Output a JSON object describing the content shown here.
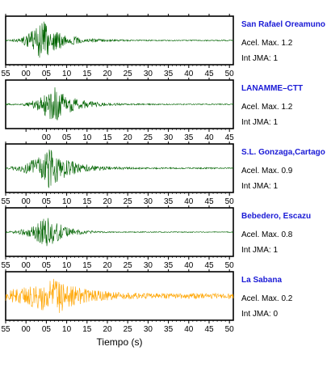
{
  "chart_data": {
    "type": "line",
    "xlabel": "Tiempo (s)",
    "x_tick_labels": [
      "55",
      "00",
      "05",
      "10",
      "15",
      "20",
      "25",
      "30",
      "35",
      "40",
      "45",
      "50",
      "55"
    ],
    "panels": [
      {
        "station": "San Rafael Oreamuno",
        "acel": "Acel. Max. 1.2",
        "jma": "Int JMA: 1",
        "color": "#006400",
        "tick_offset_s": 0,
        "tick_labels_visible": [
          0,
          11
        ],
        "signal": {
          "onset_s": 1.5,
          "peak_s": 9.0,
          "peak_amp": 0.95,
          "background": 0.06,
          "decay": 4.5
        }
      },
      {
        "station": "LANAMME–CTT",
        "acel": "Acel. Max. 1.2",
        "jma": "Int JMA: 1",
        "color": "#006400",
        "tick_offset_s": 5,
        "tick_labels_visible": [
          1,
          12
        ],
        "signal": {
          "onset_s": 4.0,
          "peak_s": 11.5,
          "peak_amp": 0.95,
          "background": 0.06,
          "decay": 4.5
        }
      },
      {
        "station": "S.L. Gonzaga,Cartago",
        "acel": "Acel. Max. 0.9",
        "jma": "Int JMA: 1",
        "color": "#006400",
        "tick_offset_s": 0,
        "tick_labels_visible": [
          0,
          11
        ],
        "signal": {
          "onset_s": 1.0,
          "peak_s": 10.5,
          "peak_amp": 0.95,
          "background": 0.08,
          "decay": 5.0
        }
      },
      {
        "station": "Bebedero, Escazu",
        "acel": "Acel. Max. 0.8",
        "jma": "Int JMA: 1",
        "color": "#006400",
        "tick_offset_s": 0,
        "tick_labels_visible": [
          0,
          11
        ],
        "signal": {
          "onset_s": 1.0,
          "peak_s": 10.5,
          "peak_amp": 0.8,
          "background": 0.05,
          "decay": 3.5
        }
      },
      {
        "station": "La Sabana",
        "acel": "Acel. Max. 0.2",
        "jma": "Int JMA: 0",
        "color": "#ffa500",
        "tick_offset_s": 0,
        "tick_labels_visible": [
          0,
          11
        ],
        "signal": {
          "onset_s": 0.0,
          "peak_s": 12.0,
          "peak_amp": 0.98,
          "background": 0.3,
          "decay": 5.5
        }
      }
    ]
  }
}
